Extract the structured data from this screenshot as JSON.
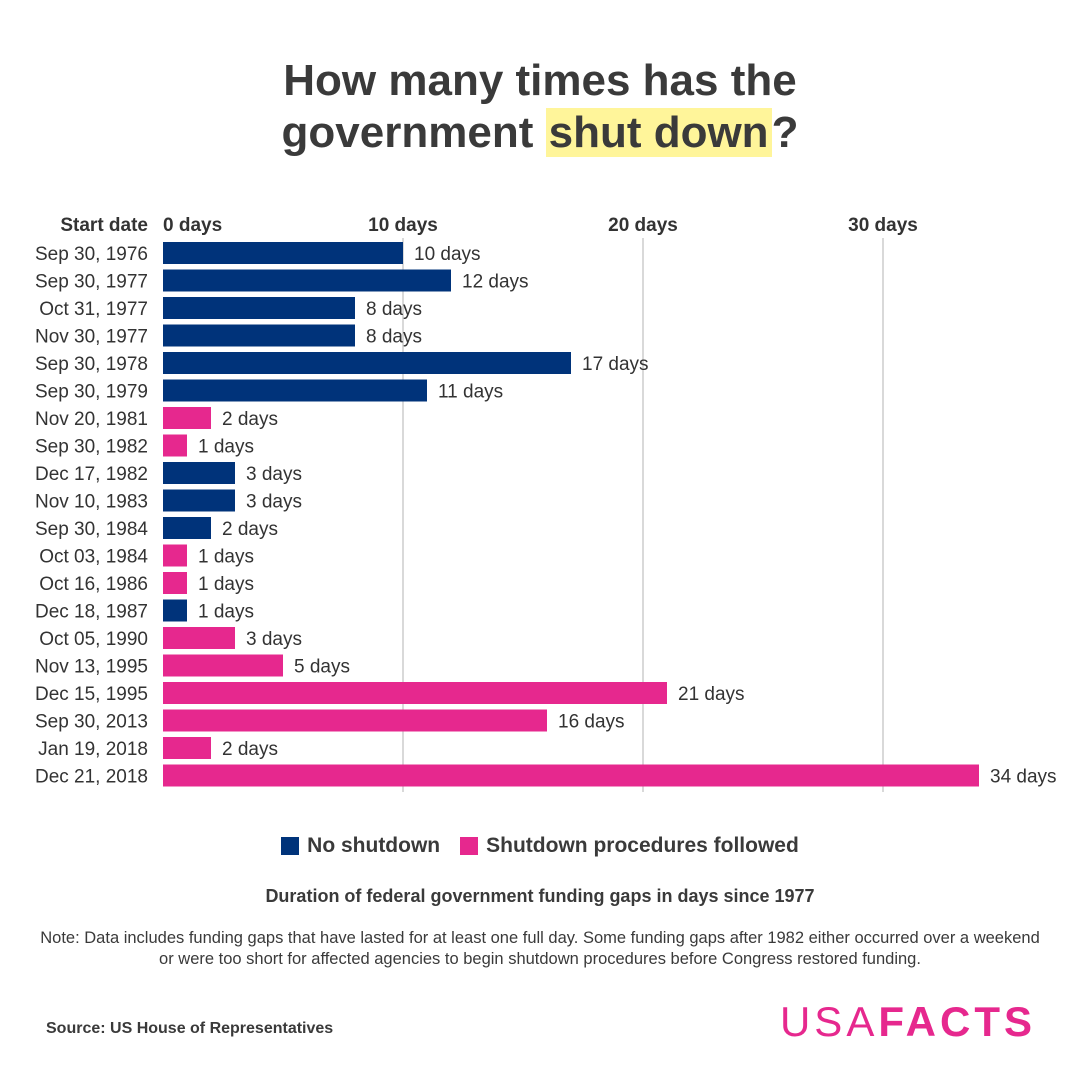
{
  "title": {
    "line1": "How many times has the",
    "line2_prefix": "government ",
    "line2_highlight": "shut down",
    "line2_suffix": "?"
  },
  "colors": {
    "no_shutdown": "#00337a",
    "shutdown": "#e6288e",
    "grid": "#d9d9d9",
    "text": "#333333"
  },
  "chart_data": {
    "type": "bar",
    "orientation": "horizontal",
    "category_header": "Start date",
    "categories": [
      "Sep 30, 1976",
      "Sep 30, 1977",
      "Oct 31, 1977",
      "Nov 30, 1977",
      "Sep 30, 1978",
      "Sep 30, 1979",
      "Nov 20, 1981",
      "Sep 30, 1982",
      "Dec 17, 1982",
      "Nov 10, 1983",
      "Sep 30, 1984",
      "Oct 03, 1984",
      "Oct 16, 1986",
      "Dec 18, 1987",
      "Oct 05, 1990",
      "Nov 13, 1995",
      "Dec 15, 1995",
      "Sep 30, 2013",
      "Jan 19, 2018",
      "Dec 21, 2018"
    ],
    "values": [
      10,
      12,
      8,
      8,
      17,
      11,
      2,
      1,
      3,
      3,
      2,
      1,
      1,
      1,
      3,
      5,
      21,
      16,
      2,
      34
    ],
    "bar_types": [
      "no_shutdown",
      "no_shutdown",
      "no_shutdown",
      "no_shutdown",
      "no_shutdown",
      "no_shutdown",
      "shutdown",
      "shutdown",
      "no_shutdown",
      "no_shutdown",
      "no_shutdown",
      "shutdown",
      "shutdown",
      "no_shutdown",
      "shutdown",
      "shutdown",
      "shutdown",
      "shutdown",
      "shutdown",
      "shutdown"
    ],
    "value_suffix": " days",
    "x_ticks": [
      0,
      10,
      20,
      30
    ],
    "x_tick_labels": [
      "0 days",
      "10 days",
      "20 days",
      "30 days"
    ],
    "xlim": [
      0,
      34
    ],
    "grid": true,
    "legend_position": "bottom-center"
  },
  "legend": {
    "no_shutdown": "No shutdown",
    "shutdown": "Shutdown procedures followed"
  },
  "subtitle": "Duration of federal government funding gaps in days since 1977",
  "note": "Note: Data includes funding gaps that have lasted for at least one full day. Some funding gaps after 1982 either occurred over a weekend or were too short for affected agencies to begin shutdown procedures before Congress restored funding.",
  "source": "Source: US House of Representatives",
  "logo": {
    "light": "USA",
    "bold": "FACTS"
  }
}
